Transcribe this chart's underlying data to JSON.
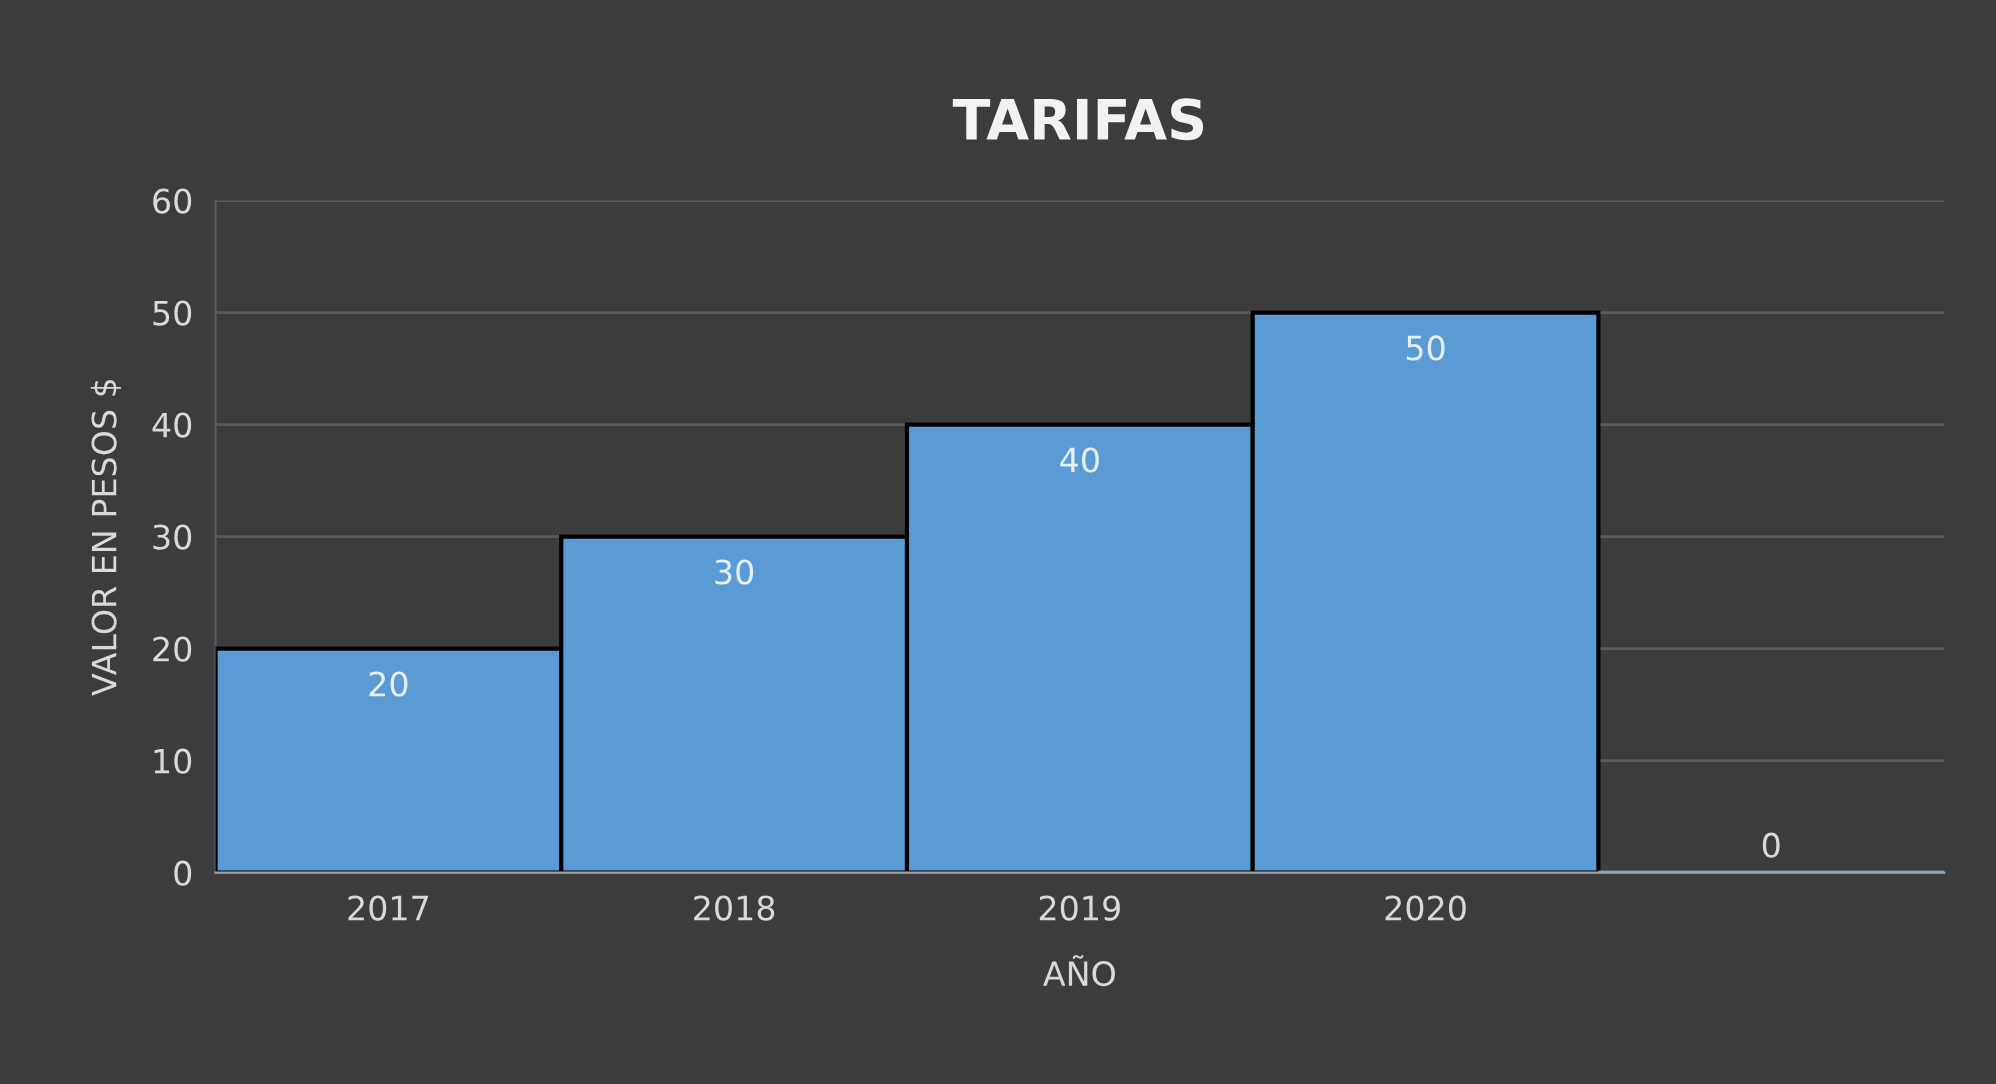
{
  "chart_data": {
    "type": "bar",
    "title": "TARIFAS",
    "xlabel": "AÑO",
    "ylabel": "VALOR EN PESOS $",
    "categories": [
      "2017",
      "2018",
      "2019",
      "2020",
      null
    ],
    "values": [
      20,
      30,
      40,
      50,
      0
    ],
    "color": "#5b9bd5",
    "ylim": [
      0,
      60
    ],
    "yticks": [
      0,
      10,
      20,
      30,
      40,
      50,
      60
    ],
    "grid": "y",
    "data_labels": true,
    "legend": false
  }
}
